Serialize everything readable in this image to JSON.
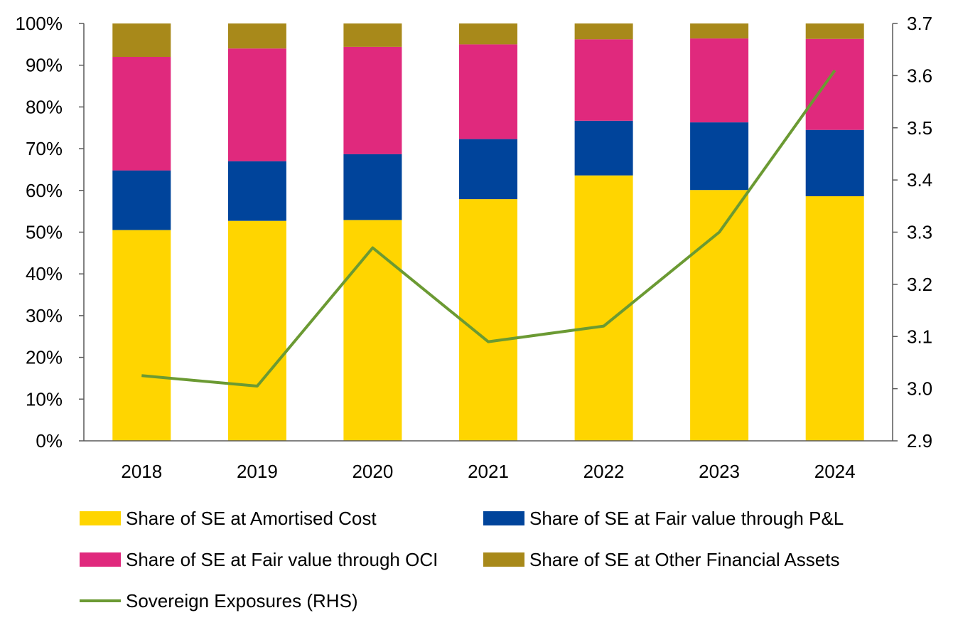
{
  "chart_data": {
    "type": "bar",
    "stacked": true,
    "categories": [
      "2018",
      "2019",
      "2020",
      "2021",
      "2022",
      "2023",
      "2024"
    ],
    "series": [
      {
        "name": "Share of SE at Amortised Cost",
        "color": "#FFD500",
        "axis": "left",
        "values": [
          0.505,
          0.527,
          0.529,
          0.579,
          0.636,
          0.601,
          0.586
        ]
      },
      {
        "name": "Share of SE at Fair value through P&L",
        "color": "#00449B",
        "axis": "left",
        "values": [
          0.143,
          0.143,
          0.158,
          0.144,
          0.131,
          0.162,
          0.159
        ]
      },
      {
        "name": "Share of SE at Fair value through OCI",
        "color": "#E0297D",
        "axis": "left",
        "values": [
          0.272,
          0.27,
          0.257,
          0.227,
          0.195,
          0.201,
          0.218
        ]
      },
      {
        "name": "Share of SE at Other Financial Assets",
        "color": "#A8891A",
        "axis": "left",
        "values": [
          0.08,
          0.06,
          0.056,
          0.05,
          0.038,
          0.036,
          0.037
        ]
      }
    ],
    "line_series": {
      "name": "Sovereign Exposures (RHS)",
      "color": "#6B9A33",
      "axis": "right",
      "values": [
        3.025,
        3.005,
        3.27,
        3.09,
        3.12,
        3.3,
        3.61
      ]
    },
    "y_left": {
      "ylim": [
        0,
        1
      ],
      "ticks": [
        "0%",
        "10%",
        "20%",
        "30%",
        "40%",
        "50%",
        "60%",
        "70%",
        "80%",
        "90%",
        "100%"
      ]
    },
    "y_right": {
      "ylim": [
        2.9,
        3.7
      ],
      "ticks": [
        "2.9",
        "3.0",
        "3.1",
        "3.2",
        "3.3",
        "3.4",
        "3.5",
        "3.6",
        "3.7"
      ]
    },
    "grid": false,
    "legend_position": "bottom"
  }
}
